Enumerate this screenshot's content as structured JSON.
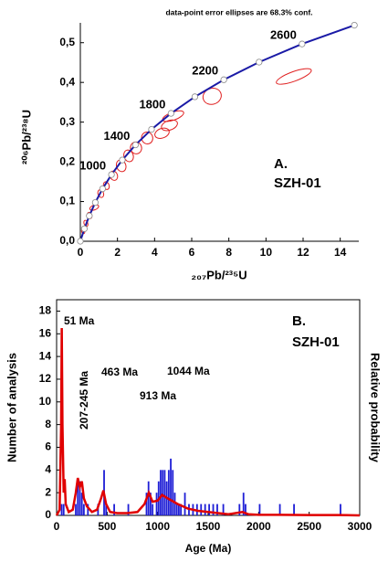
{
  "chart_data": [
    {
      "type": "concordia",
      "title": "data-point error ellipses are 68.3% conf.",
      "x_label": "₂₀₇Pb/²³⁵U",
      "y_label": "²⁰⁶Pb/²³⁸U",
      "xlim": [
        0,
        15
      ],
      "ylim": [
        0,
        0.55
      ],
      "xticks": [
        0,
        2,
        4,
        6,
        8,
        10,
        12,
        14
      ],
      "yticks": [
        {
          "value": 0,
          "label": "0,0"
        },
        {
          "value": 0.1,
          "label": "0,1"
        },
        {
          "value": 0.2,
          "label": "0,2"
        },
        {
          "value": 0.3,
          "label": "0,3"
        },
        {
          "value": 0.4,
          "label": "0,4"
        },
        {
          "value": 0.5,
          "label": "0,5"
        }
      ],
      "annotations": [
        "A.",
        "SZH-01"
      ],
      "concordia": {
        "color": "#1a1aa6",
        "x": [
          0,
          0.2177,
          0.4828,
          0.8056,
          1.1987,
          1.6774,
          2.2603,
          2.9701,
          3.8344,
          4.8866,
          6.1689,
          7.7284,
          9.6293,
          11.944,
          14.762
        ],
        "y": [
          0,
          0.0315,
          0.064,
          0.0976,
          0.1322,
          0.1678,
          0.2046,
          0.2426,
          0.2817,
          0.3221,
          0.3638,
          0.4067,
          0.4511,
          0.4968,
          0.544
        ],
        "labels": [
          null,
          null,
          null,
          null,
          null,
          "1000",
          null,
          "1400",
          null,
          "1800",
          null,
          "2200",
          null,
          "2600",
          null
        ]
      },
      "ellipses": {
        "color": "#e02020",
        "x": [
          11.5,
          7.1,
          5.0,
          4.8,
          4.4,
          3.6,
          3.0,
          2.6,
          2.2,
          1.8,
          1.4,
          1.1,
          0.75,
          0.5,
          0.3,
          0.15
        ],
        "y": [
          0.415,
          0.365,
          0.315,
          0.292,
          0.272,
          0.26,
          0.235,
          0.215,
          0.19,
          0.165,
          0.14,
          0.12,
          0.085,
          0.065,
          0.045,
          0.025
        ],
        "xerr": [
          1.0,
          0.5,
          0.6,
          0.45,
          0.4,
          0.3,
          0.3,
          0.25,
          0.25,
          0.2,
          0.15,
          0.15,
          0.25,
          0.12,
          0.1,
          0.08
        ],
        "yerr": [
          0.012,
          0.02,
          0.01,
          0.012,
          0.012,
          0.015,
          0.015,
          0.015,
          0.015,
          0.012,
          0.01,
          0.01,
          0.006,
          0.008,
          0.008,
          0.006
        ]
      }
    },
    {
      "type": "histogram",
      "x_label": "Age (Ma)",
      "y_label": "Number of analysis",
      "y2_label": "Relative probability",
      "xlim": [
        0,
        3000
      ],
      "ylim": [
        0,
        19
      ],
      "xticks": [
        0,
        500,
        1000,
        1500,
        2000,
        2500,
        3000
      ],
      "yticks": [
        0,
        2,
        4,
        6,
        8,
        10,
        12,
        14,
        16,
        18
      ],
      "annotations": [
        "B.",
        "SZH-01",
        "51 Ma",
        "207-245 Ma",
        "463 Ma",
        "913 Ma",
        "1044 Ma"
      ],
      "color": "#1f1fd6",
      "bins": [
        0,
        20,
        40,
        60,
        80,
        100,
        120,
        140,
        160,
        180,
        200,
        220,
        240,
        260,
        280,
        300,
        320,
        340,
        360,
        380,
        400,
        420,
        440,
        460,
        480,
        500,
        520,
        540,
        560,
        580,
        600,
        620,
        640,
        660,
        680,
        700,
        720,
        740,
        760,
        780,
        800,
        820,
        840,
        860,
        880,
        900,
        920,
        940,
        960,
        980,
        1000,
        1020,
        1040,
        1060,
        1080,
        1100,
        1120,
        1140,
        1160,
        1180,
        1200,
        1220,
        1240,
        1260,
        1280,
        1300,
        1320,
        1340,
        1360,
        1380,
        1400,
        1420,
        1440,
        1460,
        1480,
        1500,
        1520,
        1540,
        1560,
        1580,
        1600,
        1620,
        1640,
        1660,
        1680,
        1700,
        1720,
        1740,
        1760,
        1780,
        1800,
        1820,
        1840,
        1860,
        1880,
        1900,
        1920,
        1940,
        1960,
        1980,
        2000,
        2020,
        2040,
        2060,
        2080,
        2100,
        2120,
        2140,
        2160,
        2180,
        2200,
        2220,
        2240,
        2260,
        2280,
        2300,
        2320,
        2340,
        2360,
        2380,
        2400,
        2420,
        2440,
        2460,
        2480,
        2500,
        2520,
        2540,
        2560,
        2580,
        2600,
        2620,
        2640,
        2660,
        2680,
        2700,
        2720,
        2740,
        2760,
        2780,
        2800,
        2820,
        2840
      ],
      "counts": [
        0,
        0,
        1,
        1,
        0,
        0,
        0,
        0,
        0,
        1,
        3,
        3,
        2,
        1,
        0,
        1,
        0,
        0,
        0,
        0,
        1,
        0,
        0,
        4,
        1,
        0,
        0,
        0,
        1,
        0,
        0,
        0,
        0,
        0,
        0,
        1,
        0,
        0,
        0,
        0,
        0,
        0,
        0,
        0,
        2,
        3,
        2,
        1,
        0,
        2,
        3,
        4,
        4,
        4,
        3,
        4,
        5,
        4,
        2,
        1,
        1,
        1,
        0,
        2,
        0,
        1,
        0,
        1,
        0,
        1,
        0,
        1,
        0,
        1,
        0,
        1,
        0,
        1,
        0,
        1,
        0,
        0,
        1,
        0,
        0,
        0,
        0,
        0,
        0,
        0,
        1,
        0,
        2,
        1,
        0,
        0,
        0,
        0,
        0,
        0,
        1,
        0,
        0,
        0,
        0,
        0,
        0,
        0,
        0,
        0,
        1,
        0,
        0,
        0,
        0,
        0,
        0,
        1,
        0,
        0,
        0,
        0,
        0,
        0,
        0,
        0,
        0,
        0,
        0,
        0,
        0,
        0,
        0,
        0,
        0,
        0,
        0,
        0,
        0,
        0,
        1,
        0
      ],
      "probability": {
        "color": "#e00000",
        "x": [
          0,
          30,
          45,
          51,
          58,
          70,
          80,
          90,
          120,
          160,
          190,
          210,
          230,
          250,
          270,
          300,
          350,
          400,
          440,
          463,
          490,
          530,
          600,
          700,
          800,
          870,
          913,
          950,
          1000,
          1044,
          1100,
          1200,
          1300,
          1400,
          1500,
          1600,
          1700,
          1840,
          1900,
          2000,
          2200,
          2500,
          2800,
          3000
        ],
        "values": [
          0,
          0.5,
          8,
          16.5,
          8,
          2,
          3.2,
          1,
          0.3,
          0.5,
          2,
          3.3,
          2.5,
          3,
          1.5,
          0.8,
          0.3,
          0.5,
          1.5,
          2.2,
          1,
          0.3,
          0.2,
          0.2,
          0.3,
          1,
          2,
          1.2,
          1.3,
          1.8,
          1.5,
          1,
          0.6,
          0.4,
          0.3,
          0.2,
          0.1,
          0.3,
          0.1,
          0.05,
          0.05,
          0.03,
          0.03,
          0
        ]
      }
    }
  ]
}
